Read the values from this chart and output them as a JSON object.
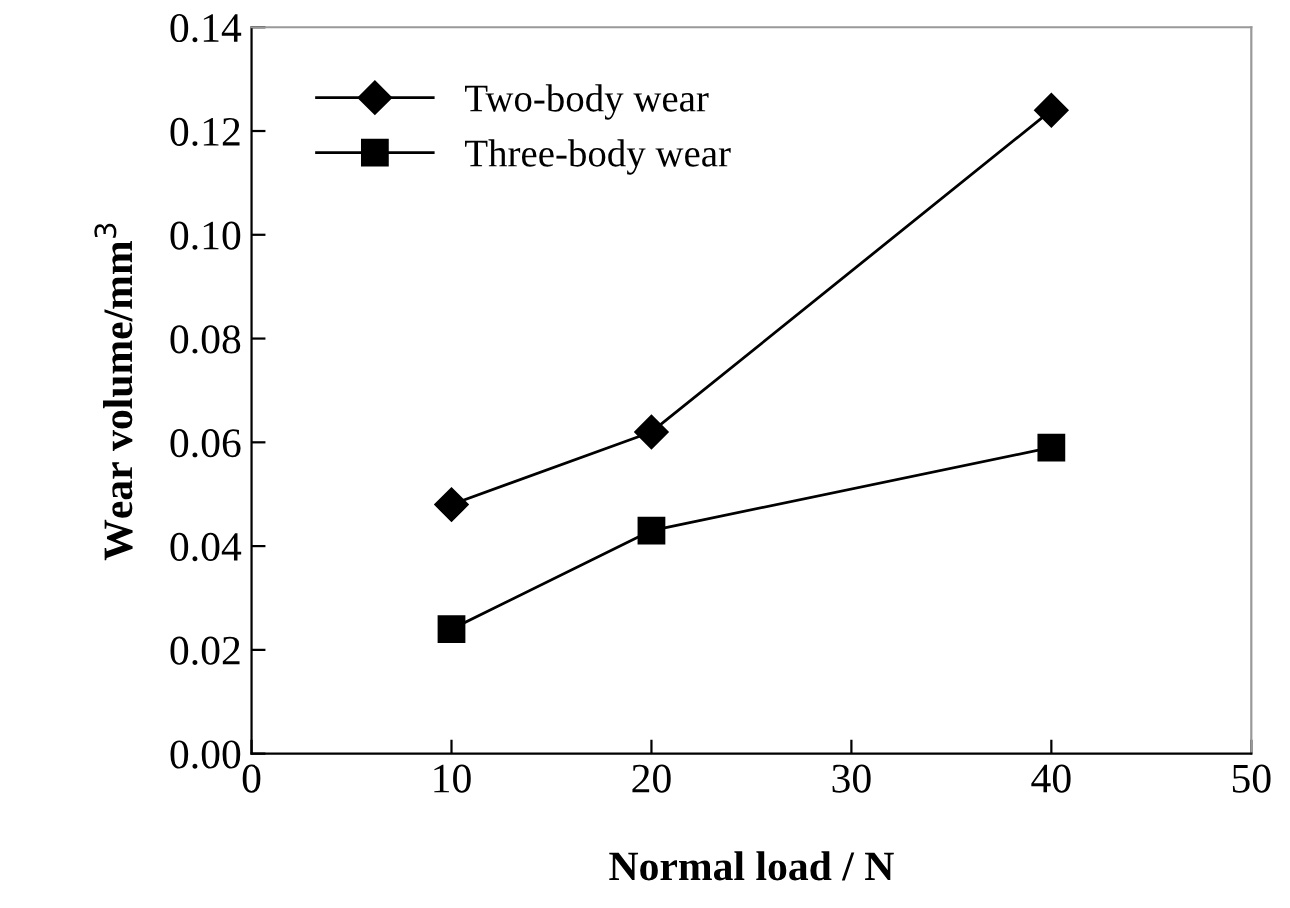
{
  "chart_data": {
    "type": "line",
    "xlabel": "Normal load / N",
    "ylabel": "Wear volume/mm$^{3}$",
    "x": [
      10,
      20,
      40
    ],
    "series": [
      {
        "name": "Two-body wear",
        "color": "#000000",
        "marker": "diamond",
        "values": [
          0.048,
          0.062,
          0.124
        ]
      },
      {
        "name": "Three-body wear",
        "color": "#000000",
        "marker": "square",
        "values": [
          0.024,
          0.043,
          0.059
        ]
      }
    ],
    "xlim": [
      0,
      50
    ],
    "xticks": [
      0,
      10,
      20,
      30,
      40,
      50
    ],
    "ylim": [
      0,
      0.14
    ],
    "yticks": [
      {
        "value": 0,
        "label": "0.00"
      },
      {
        "value": 0.02,
        "label": "0.02"
      },
      {
        "value": 0.04,
        "label": "0.04"
      },
      {
        "value": 0.06,
        "label": "0.06"
      },
      {
        "value": 0.08,
        "label": "0.08"
      },
      {
        "value": 0.1,
        "label": "0.10"
      },
      {
        "value": 0.12,
        "label": "0.12"
      },
      {
        "value": 0.14,
        "label": "0.14"
      }
    ],
    "legend": "top left",
    "grid": false,
    "line_style": "solid"
  }
}
